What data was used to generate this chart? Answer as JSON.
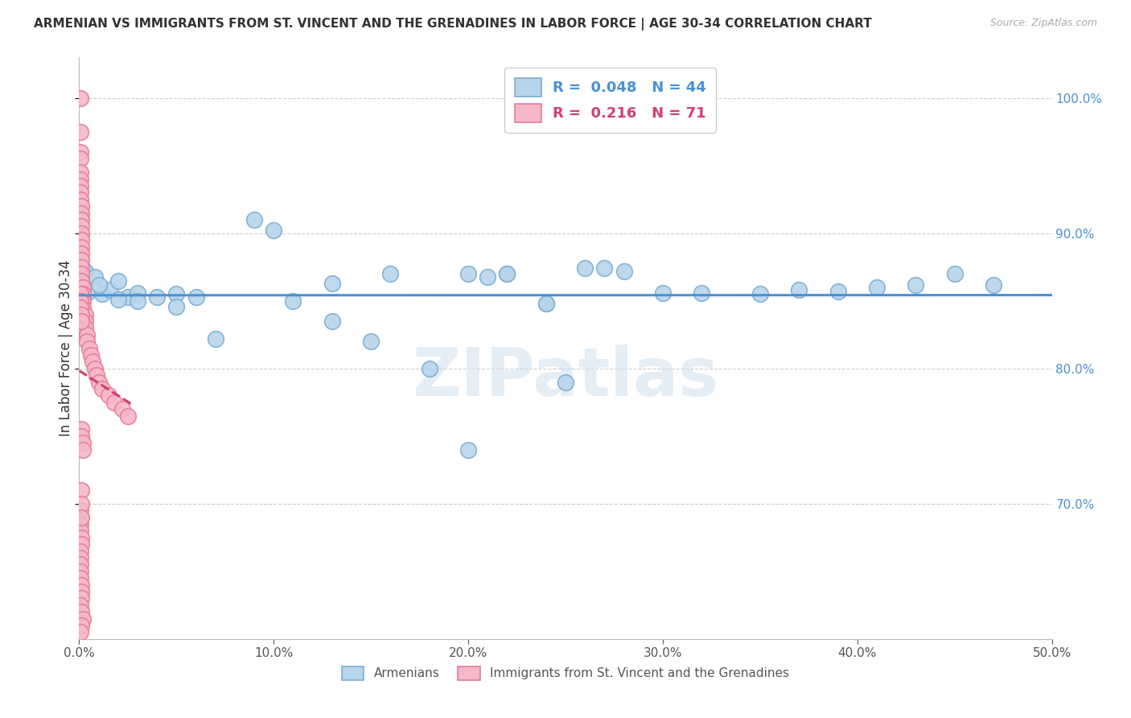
{
  "title": "ARMENIAN VS IMMIGRANTS FROM ST. VINCENT AND THE GRENADINES IN LABOR FORCE | AGE 30-34 CORRELATION CHART",
  "source": "Source: ZipAtlas.com",
  "ylabel": "In Labor Force | Age 30-34",
  "xlim": [
    0.0,
    0.5
  ],
  "ylim": [
    0.6,
    1.03
  ],
  "xticklabels": [
    "0.0%",
    "10.0%",
    "20.0%",
    "30.0%",
    "40.0%",
    "50.0%"
  ],
  "xtick_vals": [
    0.0,
    0.1,
    0.2,
    0.3,
    0.4,
    0.5
  ],
  "ytick_vals": [
    0.7,
    0.8,
    0.9,
    1.0
  ],
  "yticklabels": [
    "70.0%",
    "80.0%",
    "90.0%",
    "100.0%"
  ],
  "legend_line1": "R =  0.048   N = 44",
  "legend_line2": "R =  0.216   N = 71",
  "blue_color": "#b8d4ea",
  "blue_edge": "#7aafd4",
  "pink_color": "#f4b8c8",
  "pink_edge": "#e87a9a",
  "blue_line_color": "#4a90d9",
  "pink_line_color": "#d04070",
  "watermark": "ZIPatlas",
  "blue_x": [
    0.003,
    0.004,
    0.008,
    0.012,
    0.016,
    0.02,
    0.025,
    0.03,
    0.04,
    0.05,
    0.06,
    0.07,
    0.09,
    0.1,
    0.11,
    0.13,
    0.15,
    0.18,
    0.2,
    0.22,
    0.24,
    0.26,
    0.28,
    0.3,
    0.32,
    0.35,
    0.37,
    0.39,
    0.41,
    0.43,
    0.45,
    0.47,
    0.25,
    0.2,
    0.13,
    0.16,
    0.21,
    0.27,
    0.24,
    0.22,
    0.05,
    0.03,
    0.02,
    0.01
  ],
  "blue_y": [
    0.872,
    0.856,
    0.868,
    0.855,
    0.858,
    0.865,
    0.853,
    0.856,
    0.853,
    0.855,
    0.853,
    0.822,
    0.91,
    0.902,
    0.85,
    0.863,
    0.82,
    0.8,
    0.87,
    0.87,
    0.848,
    0.874,
    0.872,
    0.856,
    0.856,
    0.855,
    0.858,
    0.857,
    0.86,
    0.862,
    0.87,
    0.862,
    0.79,
    0.74,
    0.835,
    0.87,
    0.868,
    0.874,
    0.848,
    0.87,
    0.846,
    0.85,
    0.851,
    0.862
  ],
  "pink_x": [
    0.0005,
    0.0005,
    0.0005,
    0.0005,
    0.0005,
    0.0005,
    0.0005,
    0.0005,
    0.0005,
    0.001,
    0.001,
    0.001,
    0.001,
    0.001,
    0.001,
    0.001,
    0.001,
    0.001,
    0.001,
    0.001,
    0.001,
    0.002,
    0.002,
    0.002,
    0.002,
    0.003,
    0.003,
    0.003,
    0.004,
    0.004,
    0.005,
    0.006,
    0.007,
    0.008,
    0.009,
    0.01,
    0.012,
    0.015,
    0.018,
    0.022,
    0.025,
    0.0005,
    0.0005,
    0.0005,
    0.001,
    0.001,
    0.001,
    0.001,
    0.002,
    0.002,
    0.0005,
    0.0005,
    0.001,
    0.001,
    0.0005,
    0.001,
    0.001,
    0.0005,
    0.0005,
    0.0005,
    0.0005,
    0.0005,
    0.001,
    0.001,
    0.001,
    0.0005,
    0.001,
    0.002,
    0.001,
    0.0005,
    0.001
  ],
  "pink_y": [
    1.0,
    0.975,
    0.96,
    0.955,
    0.945,
    0.94,
    0.935,
    0.93,
    0.925,
    0.92,
    0.915,
    0.91,
    0.905,
    0.9,
    0.895,
    0.89,
    0.885,
    0.88,
    0.875,
    0.87,
    0.865,
    0.86,
    0.855,
    0.85,
    0.845,
    0.84,
    0.835,
    0.83,
    0.825,
    0.82,
    0.815,
    0.81,
    0.805,
    0.8,
    0.795,
    0.79,
    0.785,
    0.78,
    0.775,
    0.77,
    0.765,
    0.855,
    0.85,
    0.845,
    0.84,
    0.835,
    0.755,
    0.75,
    0.745,
    0.74,
    0.695,
    0.685,
    0.71,
    0.7,
    0.68,
    0.675,
    0.67,
    0.665,
    0.66,
    0.655,
    0.65,
    0.645,
    0.64,
    0.635,
    0.63,
    0.625,
    0.62,
    0.615,
    0.61,
    0.605,
    0.69
  ]
}
